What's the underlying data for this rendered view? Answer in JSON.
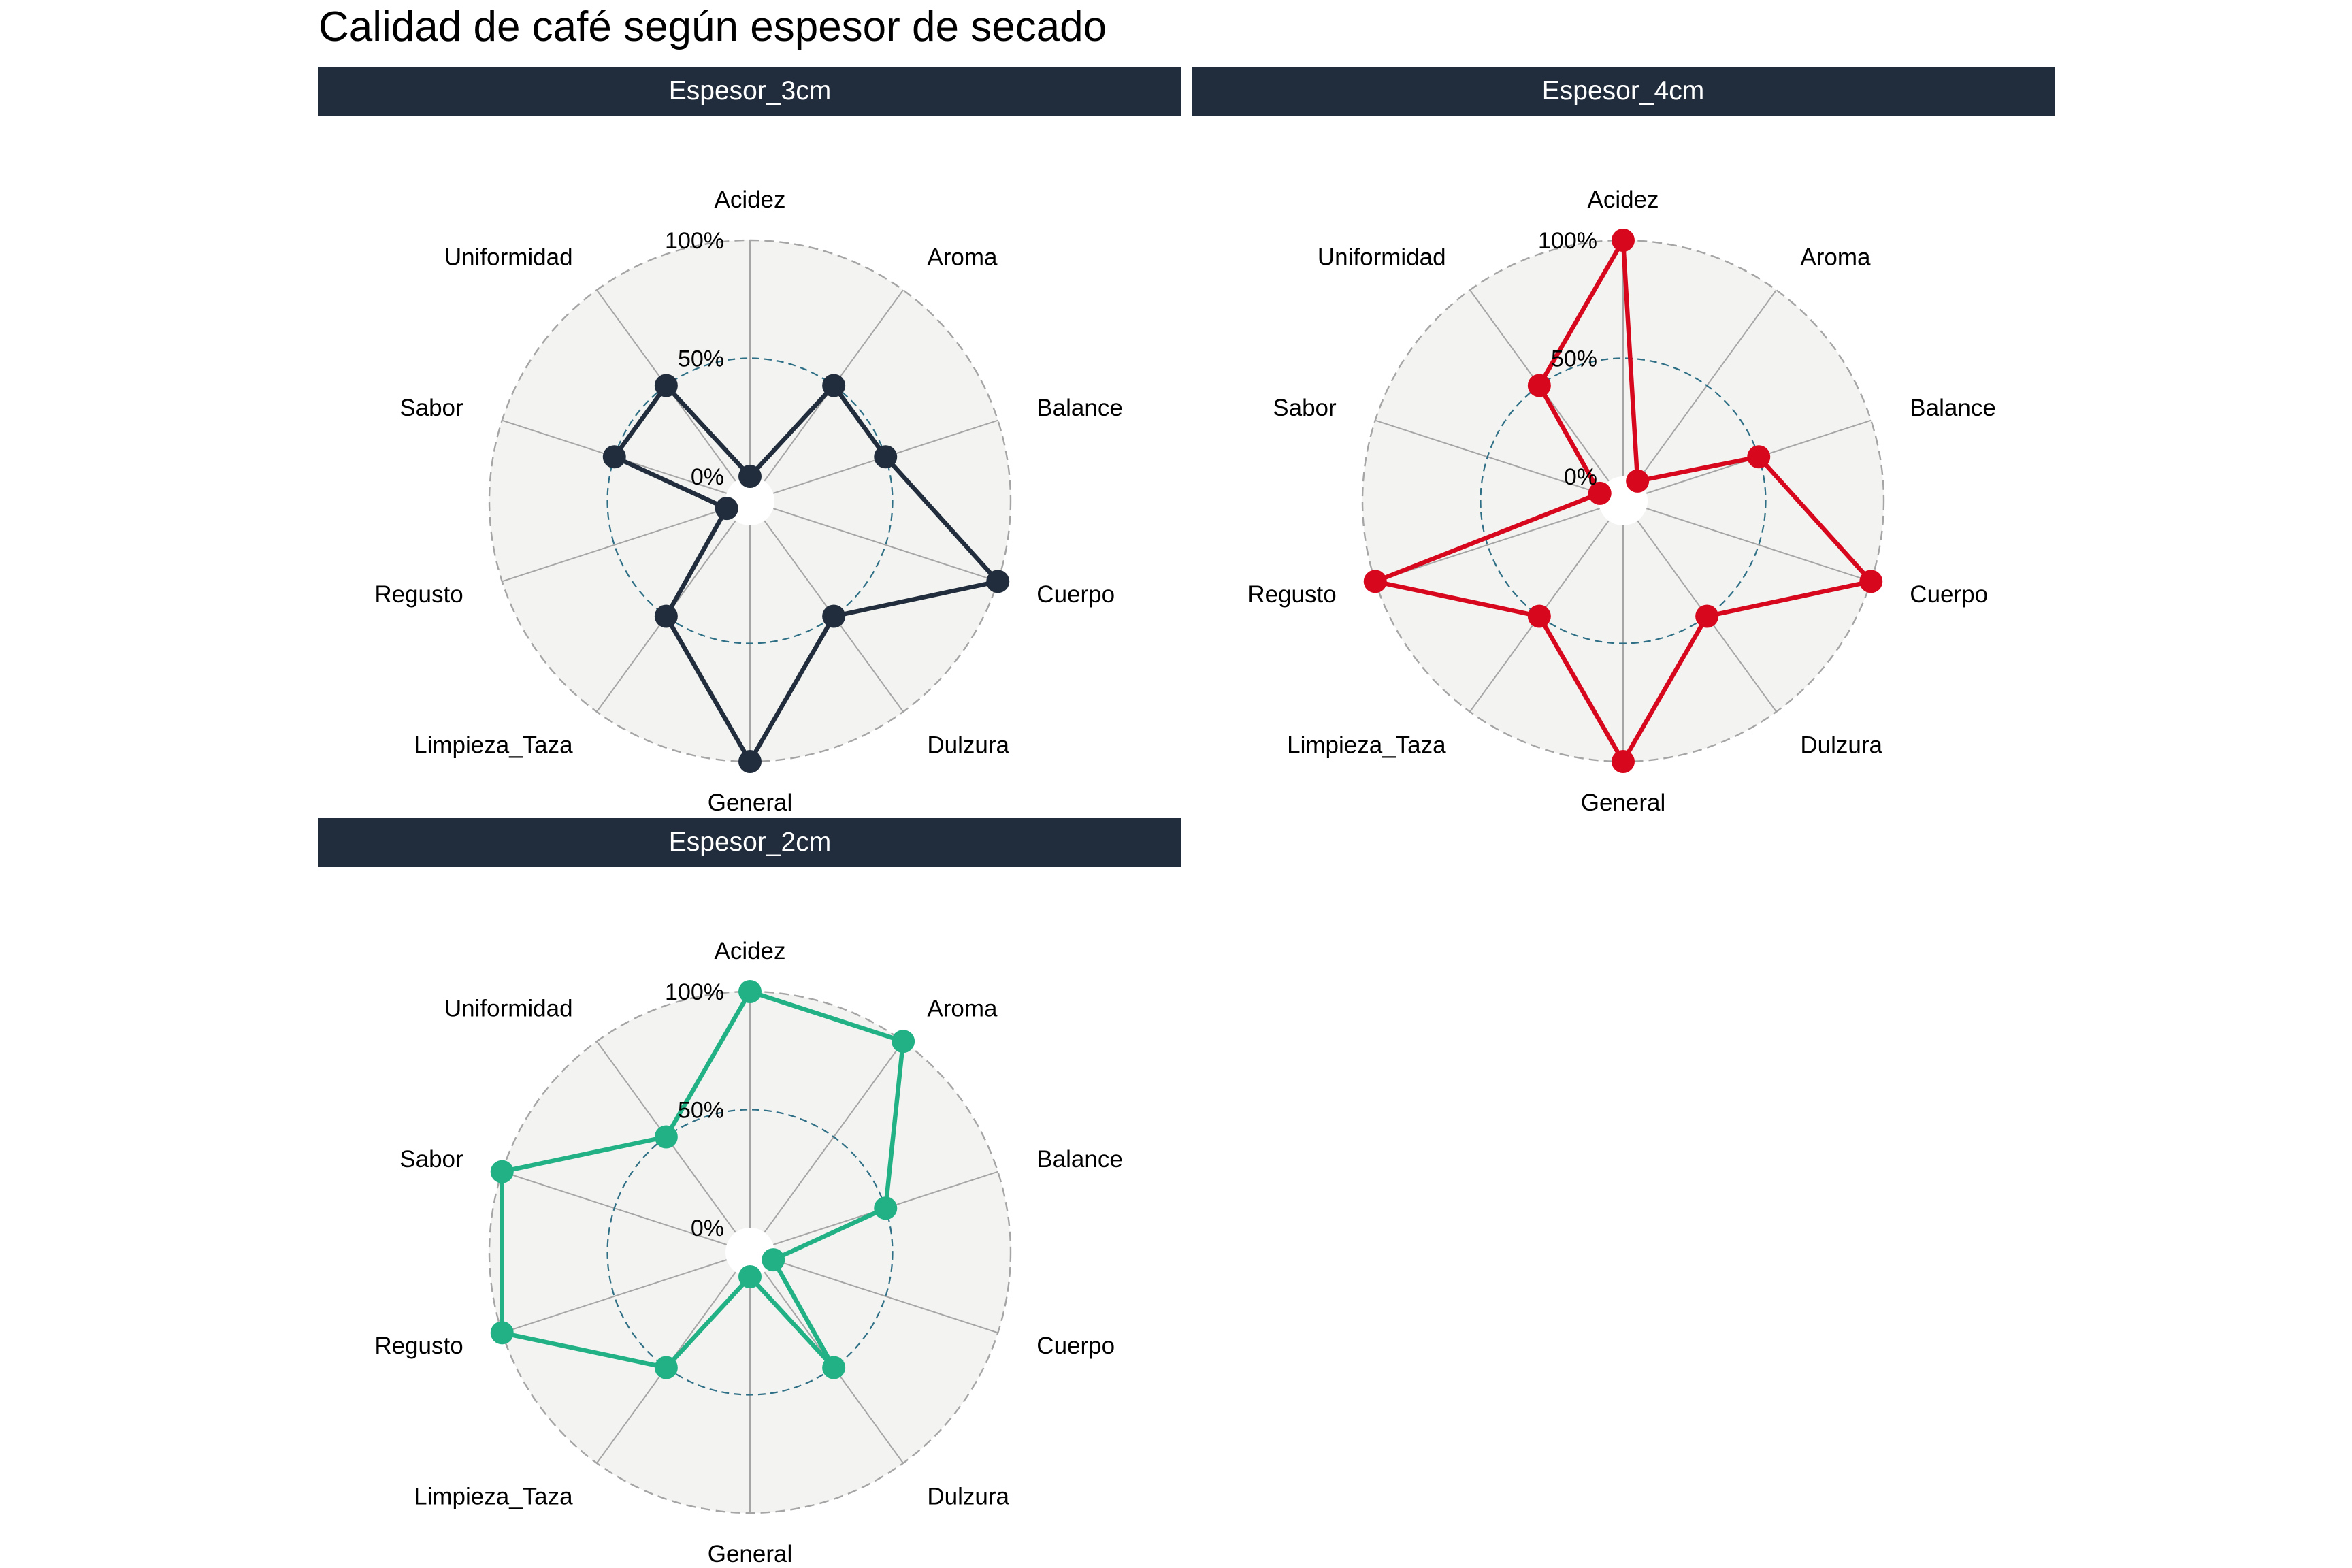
{
  "title": "Calidad de café según espesor de secado",
  "chart_data": [
    {
      "type": "radar",
      "panel": "Espesor_3cm",
      "color": "#212d3c",
      "axes": [
        "Acidez",
        "Aroma",
        "Balance",
        "Cuerpo",
        "Dulzura",
        "General",
        "Limpieza_Taza",
        "Regusto",
        "Sabor",
        "Uniformidad"
      ],
      "radial_ticks": [
        "0%",
        "50%",
        "100%"
      ],
      "rlim": [
        0,
        100
      ],
      "values": [
        0,
        50,
        50,
        100,
        50,
        100,
        50,
        0,
        50,
        50
      ]
    },
    {
      "type": "radar",
      "panel": "Espesor_4cm",
      "color": "#d7081d",
      "axes": [
        "Acidez",
        "Aroma",
        "Balance",
        "Cuerpo",
        "Dulzura",
        "General",
        "Limpieza_Taza",
        "Regusto",
        "Sabor",
        "Uniformidad"
      ],
      "radial_ticks": [
        "0%",
        "50%",
        "100%"
      ],
      "rlim": [
        0,
        100
      ],
      "values": [
        100,
        0,
        50,
        100,
        50,
        100,
        50,
        100,
        0,
        50
      ]
    },
    {
      "type": "radar",
      "panel": "Espesor_2cm",
      "color": "#22b185",
      "axes": [
        "Acidez",
        "Aroma",
        "Balance",
        "Cuerpo",
        "Dulzura",
        "General",
        "Limpieza_Taza",
        "Regusto",
        "Sabor",
        "Uniformidad"
      ],
      "radial_ticks": [
        "0%",
        "50%",
        "100%"
      ],
      "rlim": [
        0,
        100
      ],
      "values": [
        100,
        100,
        50,
        0,
        50,
        0,
        50,
        100,
        100,
        50
      ]
    }
  ]
}
